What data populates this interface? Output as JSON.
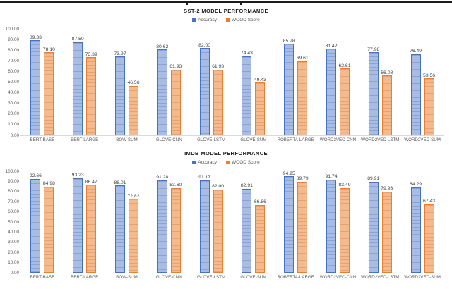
{
  "chart_data": [
    {
      "type": "bar",
      "title": "SST-2 MODEL PERFORMANCE",
      "legend_position": "top",
      "grid": false,
      "xlabel": "",
      "ylabel": "",
      "ylim": [
        0,
        100
      ],
      "y_ticks": [
        100,
        90,
        80,
        70,
        60,
        50,
        40,
        30,
        20,
        10,
        0
      ],
      "value_label_decimals": 2,
      "categories": [
        "BERT-BASE",
        "BERT-LARGE",
        "BOW-SUM",
        "GLOVE-CNN",
        "GLOVE-LSTM",
        "GLOVE-SUM",
        "ROBERTA-LARGE",
        "WORD2VEC-CNN",
        "WORD2VEC-LSTM",
        "WORD2VEC-SUM"
      ],
      "series": [
        {
          "name": "Accuracy",
          "color": "#4472C4",
          "fill": "#A9BDE4",
          "stripe": "#8AA4D6",
          "values": [
            89.33,
            87.5,
            73.97,
            80.62,
            82.0,
            74.43,
            85.78,
            81.42,
            77.98,
            76.49
          ]
        },
        {
          "name": "WOOD Score",
          "color": "#ED7D31",
          "fill": "#F3BA8E",
          "stripe": "#E9A26F",
          "values": [
            78.1,
            73.39,
            46.56,
            61.93,
            61.93,
            49.43,
            69.61,
            62.61,
            56.08,
            53.56
          ]
        }
      ]
    },
    {
      "type": "bar",
      "title": "IMDB MODEL PERFORMANCE",
      "legend_position": "top",
      "grid": false,
      "xlabel": "",
      "ylabel": "",
      "ylim": [
        0,
        100
      ],
      "y_ticks": [
        100,
        90,
        80,
        70,
        60,
        50,
        40,
        30,
        20,
        10,
        0
      ],
      "value_label_decimals": 2,
      "categories": [
        "BERT-BASE",
        "BERT-LARGE",
        "BOW-SUM",
        "GLOVE-CNN",
        "GLOVE-LSTM",
        "GLOVE-SUM",
        "ROBERTA-LARGE",
        "WORD2VEC-CNN",
        "WORD2VEC-LSTM",
        "WORD2VEC-SUM"
      ],
      "series": [
        {
          "name": "Accuracy",
          "color": "#4472C4",
          "fill": "#A9BDE4",
          "stripe": "#8AA4D6",
          "values": [
            92.66,
            93.23,
            86.01,
            91.28,
            91.17,
            82.91,
            94.95,
            91.74,
            89.91,
            84.29
          ]
        },
        {
          "name": "WOOD Score",
          "color": "#ED7D31",
          "fill": "#F3BA8E",
          "stripe": "#E9A26F",
          "values": [
            84.98,
            86.47,
            72.82,
            83.6,
            82.0,
            66.86,
            89.79,
            83.49,
            79.93,
            67.43
          ]
        }
      ]
    }
  ]
}
